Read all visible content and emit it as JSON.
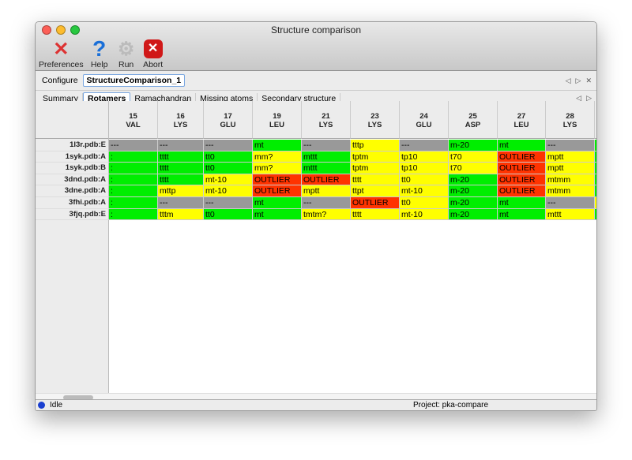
{
  "window": {
    "title": "Structure comparison"
  },
  "toolbar": [
    {
      "label": "Preferences",
      "icon": "wrench-screwdriver-icon"
    },
    {
      "label": "Help",
      "icon": "question-icon"
    },
    {
      "label": "Run",
      "icon": "gear-icon"
    },
    {
      "label": "Abort",
      "icon": "stop-icon"
    }
  ],
  "config": {
    "label": "Configure",
    "tab": "StructureComparison_1"
  },
  "tabs": [
    "Summary",
    "Rotamers",
    "Ramachandran",
    "Missing atoms",
    "Secondary structure"
  ],
  "active_tab": "Rotamers",
  "colors": {
    "green": "#00ee00",
    "yellow": "#ffff00",
    "red": "#ff3300",
    "gray": "#999999"
  },
  "table": {
    "columns": [
      {
        "num": "15",
        "res": "VAL"
      },
      {
        "num": "16",
        "res": "LYS"
      },
      {
        "num": "17",
        "res": "GLU"
      },
      {
        "num": "19",
        "res": "LEU"
      },
      {
        "num": "21",
        "res": "LYS"
      },
      {
        "num": "23",
        "res": "LYS"
      },
      {
        "num": "24",
        "res": "GLU"
      },
      {
        "num": "25",
        "res": "ASP"
      },
      {
        "num": "27",
        "res": "LEU"
      },
      {
        "num": "28",
        "res": "LYS"
      },
      {
        "num": "",
        "res": ""
      }
    ],
    "rows": [
      {
        "label": "1l3r.pdb:E",
        "cells": [
          [
            "---",
            "gray"
          ],
          [
            "---",
            "gray"
          ],
          [
            "---",
            "gray"
          ],
          [
            "mt",
            "green"
          ],
          [
            "---",
            "gray"
          ],
          [
            "tttp",
            "yellow"
          ],
          [
            "---",
            "gray"
          ],
          [
            "m-20",
            "green"
          ],
          [
            "mt",
            "green"
          ],
          [
            "---",
            "gray"
          ],
          [
            "",
            "green"
          ]
        ]
      },
      {
        "label": "1syk.pdb:A",
        "cells": [
          [
            ":",
            "green"
          ],
          [
            "tttt",
            "green"
          ],
          [
            "tt0",
            "green"
          ],
          [
            "mm?",
            "yellow"
          ],
          [
            "mttt",
            "green"
          ],
          [
            "tptm",
            "yellow"
          ],
          [
            "tp10",
            "yellow"
          ],
          [
            "t70",
            "yellow"
          ],
          [
            "OUTLIER",
            "red"
          ],
          [
            "mptt",
            "yellow"
          ],
          [
            "",
            "green"
          ]
        ]
      },
      {
        "label": "1syk.pdb:B",
        "cells": [
          [
            ":",
            "green"
          ],
          [
            "tttt",
            "green"
          ],
          [
            "tt0",
            "green"
          ],
          [
            "mm?",
            "yellow"
          ],
          [
            "mttt",
            "green"
          ],
          [
            "tptm",
            "yellow"
          ],
          [
            "tp10",
            "yellow"
          ],
          [
            "t70",
            "yellow"
          ],
          [
            "OUTLIER",
            "red"
          ],
          [
            "mptt",
            "yellow"
          ],
          [
            "",
            "green"
          ]
        ]
      },
      {
        "label": "3dnd.pdb:A",
        "cells": [
          [
            ":",
            "green"
          ],
          [
            "tttt",
            "green"
          ],
          [
            "mt-10",
            "yellow"
          ],
          [
            "OUTLIER",
            "red"
          ],
          [
            "OUTLIER",
            "red"
          ],
          [
            "tttt",
            "yellow"
          ],
          [
            "tt0",
            "yellow"
          ],
          [
            "m-20",
            "green"
          ],
          [
            "OUTLIER",
            "red"
          ],
          [
            "mtmm",
            "yellow"
          ],
          [
            "",
            "green"
          ]
        ]
      },
      {
        "label": "3dne.pdb:A",
        "cells": [
          [
            ":",
            "green"
          ],
          [
            "mttp",
            "yellow"
          ],
          [
            "mt-10",
            "yellow"
          ],
          [
            "OUTLIER",
            "red"
          ],
          [
            "mptt",
            "yellow"
          ],
          [
            "ttpt",
            "yellow"
          ],
          [
            "mt-10",
            "yellow"
          ],
          [
            "m-20",
            "green"
          ],
          [
            "OUTLIER",
            "red"
          ],
          [
            "mtmm",
            "yellow"
          ],
          [
            "",
            "green"
          ]
        ]
      },
      {
        "label": "3fhi.pdb:A",
        "cells": [
          [
            ":",
            "green"
          ],
          [
            "---",
            "gray"
          ],
          [
            "---",
            "gray"
          ],
          [
            "mt",
            "green"
          ],
          [
            "---",
            "gray"
          ],
          [
            "OUTLIER",
            "red"
          ],
          [
            "tt0",
            "yellow"
          ],
          [
            "m-20",
            "green"
          ],
          [
            "mt",
            "green"
          ],
          [
            "---",
            "gray"
          ],
          [
            "",
            "yellow"
          ]
        ]
      },
      {
        "label": "3fjq.pdb:E",
        "cells": [
          [
            ":",
            "green"
          ],
          [
            "tttm",
            "yellow"
          ],
          [
            "tt0",
            "green"
          ],
          [
            "mt",
            "green"
          ],
          [
            "tmtm?",
            "yellow"
          ],
          [
            "tttt",
            "yellow"
          ],
          [
            "mt-10",
            "yellow"
          ],
          [
            "m-20",
            "green"
          ],
          [
            "mt",
            "green"
          ],
          [
            "mttt",
            "yellow"
          ],
          [
            "",
            "green"
          ]
        ]
      }
    ]
  },
  "status": {
    "state": "Idle",
    "project": "Project: pka-compare"
  }
}
